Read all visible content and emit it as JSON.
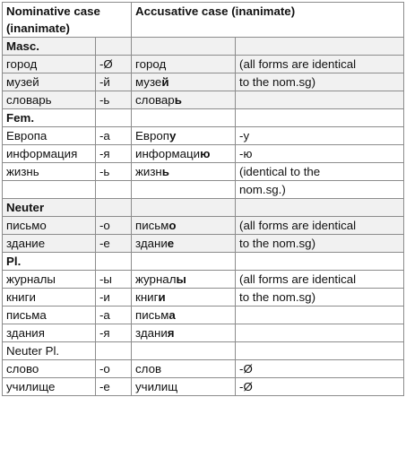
{
  "header": {
    "nominative": "Nominative case (inanimate)",
    "accusative": "Accusative case (inanimate)"
  },
  "masc": {
    "heading": "Masc.",
    "rows": [
      {
        "nom": "город",
        "ending": "-Ø",
        "acc_stem": "город",
        "acc_end": ""
      },
      {
        "nom": "музей",
        "ending": "-й",
        "acc_stem": "музе",
        "acc_end": "й"
      },
      {
        "nom": "словарь",
        "ending": "-ь",
        "acc_stem": "словар",
        "acc_end": "ь"
      }
    ],
    "note_line1": "(all forms are identical",
    "note_line2": "to the nom.sg)"
  },
  "fem": {
    "heading": "Fem.",
    "rows": [
      {
        "nom": "Европа",
        "ending": "-а",
        "acc_stem": "Европ",
        "acc_end": "у",
        "note": "-у"
      },
      {
        "nom": "информация",
        "ending": "-я",
        "acc_stem": "информаци",
        "acc_end": "ю",
        "note": "-ю"
      },
      {
        "nom": "жизнь",
        "ending": "-ь",
        "acc_stem": "жизн",
        "acc_end": "ь",
        "note": "(identical to the"
      }
    ],
    "note_cont": "nom.sg.)"
  },
  "neuter": {
    "heading": "Neuter",
    "rows": [
      {
        "nom": "письмо",
        "ending": "-о",
        "acc_stem": "письм",
        "acc_end": "о"
      },
      {
        "nom": "здание",
        "ending": "-е",
        "acc_stem": "здани",
        "acc_end": "е"
      }
    ],
    "note_line1": "(all forms are identical",
    "note_line2": "to the nom.sg)"
  },
  "plural": {
    "heading": "Pl.",
    "rows": [
      {
        "nom": "журналы",
        "ending": "-ы",
        "acc_stem": "журнал",
        "acc_end": "ы"
      },
      {
        "nom": "книги",
        "ending": "-и",
        "acc_stem": "книг",
        "acc_end": "и"
      },
      {
        "nom": "письма",
        "ending": "-а",
        "acc_stem": "письм",
        "acc_end": "а"
      },
      {
        "nom": "здания",
        "ending": "-я",
        "acc_stem": "здани",
        "acc_end": "я"
      }
    ],
    "note_line1": "(all forms are identical",
    "note_line2": "to the nom.sg)",
    "neuter_heading": "Neuter Pl.",
    "neuter_rows": [
      {
        "nom": "слово",
        "ending": "-о",
        "acc": "слов",
        "note": "-Ø"
      },
      {
        "nom": "училище",
        "ending": "-е",
        "acc": "училищ",
        "note": "-Ø"
      }
    ]
  }
}
